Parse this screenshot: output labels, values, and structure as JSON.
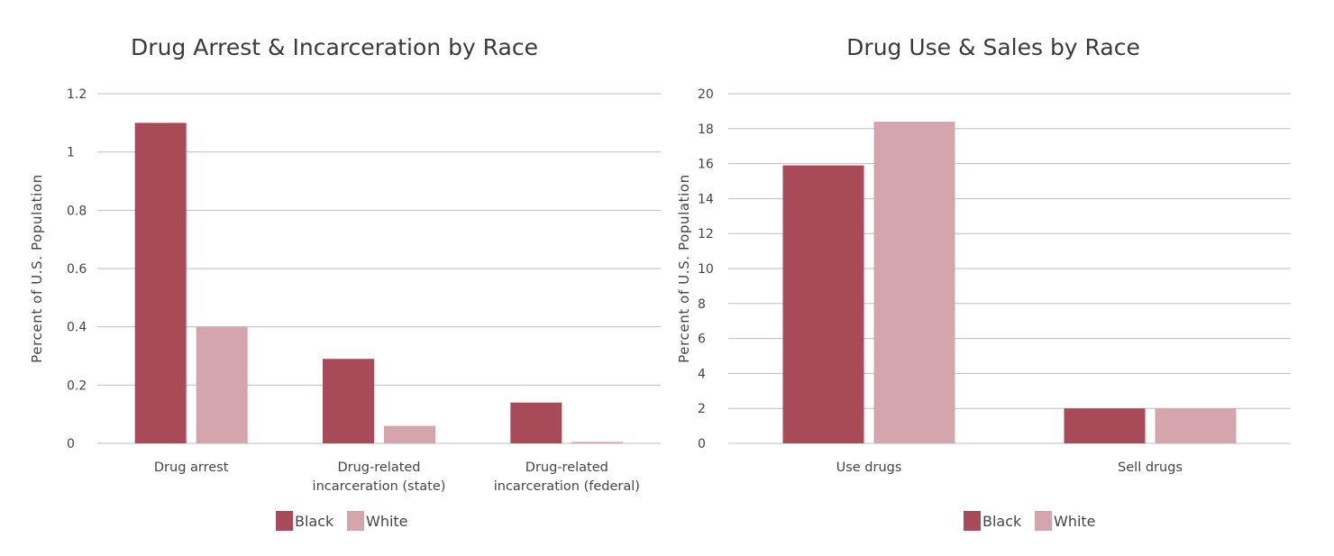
{
  "chart_data": [
    {
      "type": "bar",
      "title": "Drug Arrest & Incarceration by Race",
      "ylabel": "Percent of U.S. Population",
      "xlabel": "",
      "ylim": [
        0,
        1.2
      ],
      "yticks": [
        0,
        0.2,
        0.4,
        0.6,
        0.8,
        1,
        1.2
      ],
      "grid": true,
      "legend_position": "bottom",
      "categories": [
        [
          "Drug arrest"
        ],
        [
          "Drug-related",
          "incarceration (state)"
        ],
        [
          "Drug-related",
          "incarceration (federal)"
        ]
      ],
      "series": [
        {
          "name": "Black",
          "color": "#a84a57",
          "values": [
            1.1,
            0.29,
            0.14
          ]
        },
        {
          "name": "White",
          "color": "#d4a5ac",
          "values": [
            0.4,
            0.06,
            0.005
          ]
        }
      ]
    },
    {
      "type": "bar",
      "title": "Drug Use & Sales by Race",
      "ylabel": "Percent of U.S. Population",
      "xlabel": "",
      "ylim": [
        0,
        20
      ],
      "yticks": [
        0,
        2,
        4,
        6,
        8,
        10,
        12,
        14,
        16,
        18,
        20
      ],
      "grid": true,
      "legend_position": "bottom",
      "categories": [
        [
          "Use drugs"
        ],
        [
          "Sell drugs"
        ]
      ],
      "series": [
        {
          "name": "Black",
          "color": "#a84a57",
          "values": [
            15.9,
            2.0
          ]
        },
        {
          "name": "White",
          "color": "#d4a5ac",
          "values": [
            18.4,
            2.0
          ]
        }
      ]
    }
  ]
}
